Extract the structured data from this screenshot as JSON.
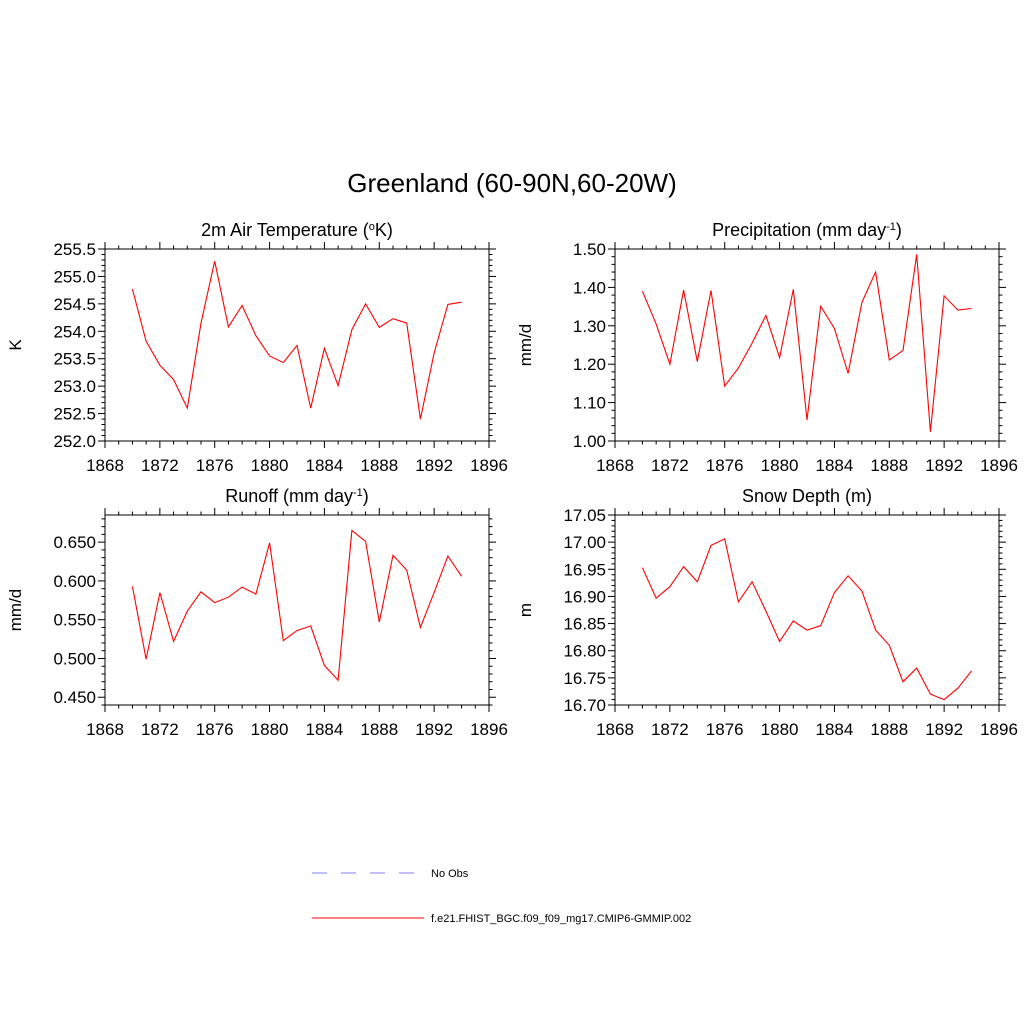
{
  "figure": {
    "title": "Greenland (60-90N,60-20W)",
    "legend": [
      {
        "label": "No Obs",
        "color": "#9999ff",
        "style": "dashed"
      },
      {
        "label": "f.e21.FHIST_BGC.f09_f09_mg17.CMIP6-GMMIP.002",
        "color": "#ff0000",
        "style": "solid"
      }
    ]
  },
  "chart_data": [
    {
      "type": "line",
      "title": "2m Air Temperature (",
      "title_sup": "o",
      "title_suffix": "K)",
      "ylabel": "K",
      "xlim": [
        1868,
        1896
      ],
      "ylim": [
        252.0,
        255.5
      ],
      "xticks": [
        1868,
        1872,
        1876,
        1880,
        1884,
        1888,
        1892,
        1896
      ],
      "yticks": [
        252.0,
        252.5,
        253.0,
        253.5,
        254.0,
        254.5,
        255.0,
        255.5
      ],
      "ytick_labels": [
        "252.0",
        "252.5",
        "253.0",
        "253.5",
        "254.0",
        "254.5",
        "255.0",
        "255.5"
      ],
      "series": [
        {
          "color": "#ff0000",
          "x": [
            1870,
            1871,
            1872,
            1873,
            1874,
            1875,
            1876,
            1877,
            1878,
            1879,
            1880,
            1881,
            1882,
            1883,
            1884,
            1885,
            1886,
            1887,
            1888,
            1889,
            1890,
            1891,
            1892,
            1893,
            1894
          ],
          "values": [
            254.77,
            253.82,
            253.38,
            253.12,
            252.6,
            254.15,
            255.28,
            254.08,
            254.47,
            253.92,
            253.55,
            253.43,
            253.74,
            252.6,
            253.69,
            253.01,
            254.03,
            254.5,
            254.07,
            254.23,
            254.15,
            252.4,
            253.6,
            254.49,
            254.53
          ]
        }
      ]
    },
    {
      "type": "line",
      "title": "Precipitation (mm day",
      "title_sup": "-1",
      "title_suffix": ")",
      "ylabel": "mm/d",
      "xlim": [
        1868,
        1896
      ],
      "ylim": [
        1.0,
        1.5
      ],
      "xticks": [
        1868,
        1872,
        1876,
        1880,
        1884,
        1888,
        1892,
        1896
      ],
      "yticks": [
        1.0,
        1.1,
        1.2,
        1.3,
        1.4,
        1.5
      ],
      "ytick_labels": [
        "1.00",
        "1.10",
        "1.20",
        "1.30",
        "1.40",
        "1.50"
      ],
      "series": [
        {
          "color": "#ff0000",
          "x": [
            1870,
            1871,
            1872,
            1873,
            1874,
            1875,
            1876,
            1877,
            1878,
            1879,
            1880,
            1881,
            1882,
            1883,
            1884,
            1885,
            1886,
            1887,
            1888,
            1889,
            1890,
            1891,
            1892,
            1893,
            1894
          ],
          "values": [
            1.39,
            1.305,
            1.2,
            1.393,
            1.207,
            1.392,
            1.143,
            1.19,
            1.255,
            1.327,
            1.217,
            1.395,
            1.055,
            1.351,
            1.293,
            1.176,
            1.361,
            1.44,
            1.211,
            1.236,
            1.486,
            1.024,
            1.378,
            1.341,
            1.345
          ]
        }
      ]
    },
    {
      "type": "line",
      "title": "Runoff (mm day",
      "title_sup": "-1",
      "title_suffix": ")",
      "ylabel": "mm/d",
      "xlim": [
        1868,
        1896
      ],
      "ylim": [
        0.44,
        0.685
      ],
      "xticks": [
        1868,
        1872,
        1876,
        1880,
        1884,
        1888,
        1892,
        1896
      ],
      "yticks": [
        0.45,
        0.5,
        0.55,
        0.6,
        0.65
      ],
      "ytick_labels": [
        "0.450",
        "0.500",
        "0.550",
        "0.600",
        "0.650"
      ],
      "series": [
        {
          "color": "#ff0000",
          "x": [
            1870,
            1871,
            1872,
            1873,
            1874,
            1875,
            1876,
            1877,
            1878,
            1879,
            1880,
            1881,
            1882,
            1883,
            1884,
            1885,
            1886,
            1887,
            1888,
            1889,
            1890,
            1891,
            1892,
            1893,
            1894
          ],
          "values": [
            0.593,
            0.499,
            0.585,
            0.522,
            0.561,
            0.586,
            0.572,
            0.579,
            0.592,
            0.583,
            0.649,
            0.523,
            0.536,
            0.542,
            0.491,
            0.472,
            0.665,
            0.651,
            0.547,
            0.633,
            0.614,
            0.54,
            0.585,
            0.632,
            0.606
          ]
        }
      ]
    },
    {
      "type": "line",
      "title": "Snow Depth (m)",
      "title_sup": "",
      "title_suffix": "",
      "ylabel": "m",
      "xlim": [
        1868,
        1896
      ],
      "ylim": [
        16.7,
        17.05
      ],
      "xticks": [
        1868,
        1872,
        1876,
        1880,
        1884,
        1888,
        1892,
        1896
      ],
      "yticks": [
        16.7,
        16.75,
        16.8,
        16.85,
        16.9,
        16.95,
        17.0,
        17.05
      ],
      "ytick_labels": [
        "16.70",
        "16.75",
        "16.80",
        "16.85",
        "16.90",
        "16.95",
        "17.00",
        "17.05"
      ],
      "series": [
        {
          "color": "#ff0000",
          "x": [
            1870,
            1871,
            1872,
            1873,
            1874,
            1875,
            1876,
            1877,
            1878,
            1879,
            1880,
            1881,
            1882,
            1883,
            1884,
            1885,
            1886,
            1887,
            1888,
            1889,
            1890,
            1891,
            1892,
            1893,
            1894
          ],
          "values": [
            16.953,
            16.897,
            16.918,
            16.955,
            16.927,
            16.994,
            17.006,
            16.89,
            16.927,
            16.873,
            16.817,
            16.855,
            16.838,
            16.846,
            16.907,
            16.938,
            16.91,
            16.838,
            16.81,
            16.743,
            16.768,
            16.72,
            16.71,
            16.731,
            16.763
          ]
        }
      ]
    }
  ]
}
